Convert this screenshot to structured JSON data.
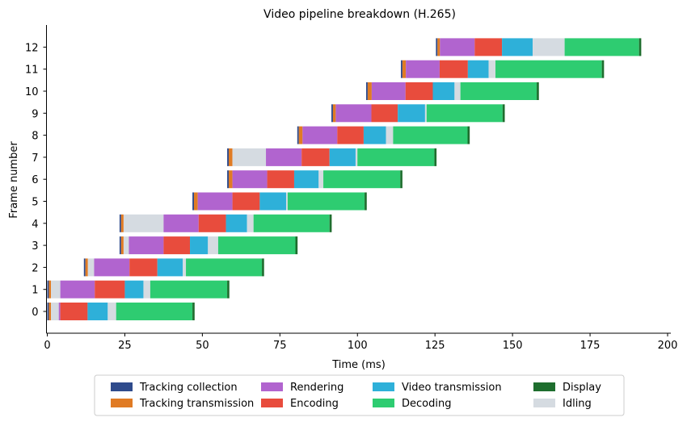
{
  "chart_data": {
    "type": "bar",
    "orientation": "horizontal-stacked-gantt",
    "title": "Video pipeline breakdown (H.265)",
    "xlabel": "Time (ms)",
    "ylabel": "Frame number",
    "xlim": [
      0,
      200
    ],
    "xticks": [
      0,
      25,
      50,
      75,
      100,
      125,
      150,
      175,
      200
    ],
    "grid": false,
    "legend_position": "bottom-center",
    "frames": [
      "0",
      "1",
      "2",
      "3",
      "4",
      "5",
      "6",
      "7",
      "8",
      "9",
      "10",
      "11",
      "12"
    ],
    "series": [
      {
        "name": "Tracking collection",
        "color": "#2f4b8c"
      },
      {
        "name": "Tracking transmission",
        "color": "#e07b24"
      },
      {
        "name": "Rendering",
        "color": "#b164cf"
      },
      {
        "name": "Encoding",
        "color": "#e84c3d"
      },
      {
        "name": "Video transmission",
        "color": "#2eb0d9"
      },
      {
        "name": "Decoding",
        "color": "#2ecc71"
      },
      {
        "name": "Display",
        "color": "#1e6e2e"
      },
      {
        "name": "Idling",
        "color": "#d5dbe1"
      }
    ],
    "tasks": [
      [
        [
          0.0,
          0.5,
          "Tracking collection"
        ],
        [
          0.5,
          1.2,
          "Tracking transmission"
        ],
        [
          1.2,
          3.7,
          "Idling"
        ],
        [
          3.7,
          4.2,
          "Rendering"
        ],
        [
          4.2,
          13.0,
          "Encoding"
        ],
        [
          13.0,
          19.5,
          "Video transmission"
        ],
        [
          19.5,
          22.2,
          "Idling"
        ],
        [
          22.2,
          46.8,
          "Decoding"
        ],
        [
          46.8,
          47.5,
          "Display"
        ]
      ],
      [
        [
          0.0,
          0.5,
          "Tracking collection"
        ],
        [
          0.5,
          1.2,
          "Tracking transmission"
        ],
        [
          1.2,
          4.2,
          "Idling"
        ],
        [
          4.2,
          15.3,
          "Rendering"
        ],
        [
          15.3,
          25.0,
          "Encoding"
        ],
        [
          25.0,
          31.0,
          "Video transmission"
        ],
        [
          31.0,
          33.2,
          "Idling"
        ],
        [
          33.2,
          58.0,
          "Decoding"
        ],
        [
          58.0,
          58.7,
          "Display"
        ]
      ],
      [
        [
          11.8,
          12.3,
          "Tracking collection"
        ],
        [
          12.3,
          13.1,
          "Tracking transmission"
        ],
        [
          13.1,
          15.1,
          "Idling"
        ],
        [
          15.1,
          26.5,
          "Rendering"
        ],
        [
          26.5,
          35.5,
          "Encoding"
        ],
        [
          35.5,
          43.7,
          "Video transmission"
        ],
        [
          43.7,
          44.7,
          "Idling"
        ],
        [
          44.7,
          69.2,
          "Decoding"
        ],
        [
          69.2,
          69.9,
          "Display"
        ]
      ],
      [
        [
          23.3,
          23.8,
          "Tracking collection"
        ],
        [
          23.8,
          24.6,
          "Tracking transmission"
        ],
        [
          24.6,
          26.3,
          "Idling"
        ],
        [
          26.3,
          37.5,
          "Rendering"
        ],
        [
          37.5,
          46.0,
          "Encoding"
        ],
        [
          46.0,
          51.8,
          "Video transmission"
        ],
        [
          51.8,
          55.1,
          "Idling"
        ],
        [
          55.1,
          80.0,
          "Decoding"
        ],
        [
          80.0,
          80.7,
          "Display"
        ]
      ],
      [
        [
          23.3,
          23.8,
          "Tracking collection"
        ],
        [
          23.8,
          24.6,
          "Tracking transmission"
        ],
        [
          24.6,
          37.5,
          "Idling"
        ],
        [
          37.5,
          48.8,
          "Rendering"
        ],
        [
          48.8,
          57.6,
          "Encoding"
        ],
        [
          57.6,
          64.4,
          "Video transmission"
        ],
        [
          64.4,
          66.5,
          "Idling"
        ],
        [
          66.5,
          91.0,
          "Decoding"
        ],
        [
          91.0,
          91.7,
          "Display"
        ]
      ],
      [
        [
          46.8,
          47.3,
          "Tracking collection"
        ],
        [
          47.3,
          48.5,
          "Tracking transmission"
        ],
        [
          48.5,
          59.7,
          "Rendering"
        ],
        [
          59.7,
          68.5,
          "Encoding"
        ],
        [
          68.5,
          77.0,
          "Video transmission"
        ],
        [
          77.0,
          77.5,
          "Idling"
        ],
        [
          77.5,
          102.3,
          "Decoding"
        ],
        [
          102.3,
          103.0,
          "Display"
        ]
      ],
      [
        [
          58.0,
          58.5,
          "Tracking collection"
        ],
        [
          58.5,
          59.7,
          "Tracking transmission"
        ],
        [
          59.7,
          70.9,
          "Rendering"
        ],
        [
          70.9,
          79.6,
          "Encoding"
        ],
        [
          79.6,
          87.5,
          "Video transmission"
        ],
        [
          87.5,
          89.0,
          "Idling"
        ],
        [
          89.0,
          113.8,
          "Decoding"
        ],
        [
          113.8,
          114.5,
          "Display"
        ]
      ],
      [
        [
          58.0,
          58.5,
          "Tracking collection"
        ],
        [
          58.5,
          59.7,
          "Tracking transmission"
        ],
        [
          59.7,
          70.5,
          "Idling"
        ],
        [
          70.5,
          82.0,
          "Rendering"
        ],
        [
          82.0,
          91.0,
          "Encoding"
        ],
        [
          91.0,
          99.4,
          "Video transmission"
        ],
        [
          99.4,
          100.0,
          "Idling"
        ],
        [
          100.0,
          124.8,
          "Decoding"
        ],
        [
          124.8,
          125.5,
          "Display"
        ]
      ],
      [
        [
          80.6,
          81.1,
          "Tracking collection"
        ],
        [
          81.1,
          82.3,
          "Tracking transmission"
        ],
        [
          82.3,
          93.5,
          "Rendering"
        ],
        [
          93.5,
          102.0,
          "Encoding"
        ],
        [
          102.0,
          109.2,
          "Video transmission"
        ],
        [
          109.2,
          111.5,
          "Idling"
        ],
        [
          111.5,
          135.5,
          "Decoding"
        ],
        [
          135.5,
          136.2,
          "Display"
        ]
      ],
      [
        [
          91.6,
          92.1,
          "Tracking collection"
        ],
        [
          92.1,
          93.0,
          "Tracking transmission"
        ],
        [
          93.0,
          104.5,
          "Rendering"
        ],
        [
          104.5,
          113.0,
          "Encoding"
        ],
        [
          113.0,
          121.8,
          "Video transmission"
        ],
        [
          121.8,
          122.3,
          "Idling"
        ],
        [
          122.3,
          146.8,
          "Decoding"
        ],
        [
          146.8,
          147.5,
          "Display"
        ]
      ],
      [
        [
          102.8,
          103.3,
          "Tracking collection"
        ],
        [
          103.3,
          104.6,
          "Tracking transmission"
        ],
        [
          104.6,
          115.5,
          "Rendering"
        ],
        [
          115.5,
          124.3,
          "Encoding"
        ],
        [
          124.3,
          131.3,
          "Video transmission"
        ],
        [
          131.3,
          133.2,
          "Idling"
        ],
        [
          133.2,
          157.8,
          "Decoding"
        ],
        [
          157.8,
          158.5,
          "Display"
        ]
      ],
      [
        [
          114.0,
          114.5,
          "Tracking collection"
        ],
        [
          114.5,
          115.6,
          "Tracking transmission"
        ],
        [
          115.6,
          126.5,
          "Rendering"
        ],
        [
          126.5,
          135.6,
          "Encoding"
        ],
        [
          135.6,
          142.3,
          "Video transmission"
        ],
        [
          142.3,
          144.5,
          "Idling"
        ],
        [
          144.5,
          178.8,
          "Decoding"
        ],
        [
          178.8,
          179.5,
          "Display"
        ]
      ],
      [
        [
          125.3,
          125.8,
          "Tracking collection"
        ],
        [
          125.8,
          126.6,
          "Tracking transmission"
        ],
        [
          126.6,
          137.8,
          "Rendering"
        ],
        [
          137.8,
          146.6,
          "Encoding"
        ],
        [
          146.6,
          156.5,
          "Video transmission"
        ],
        [
          156.5,
          166.8,
          "Idling"
        ],
        [
          166.8,
          190.8,
          "Decoding"
        ],
        [
          190.8,
          191.5,
          "Display"
        ]
      ]
    ]
  }
}
